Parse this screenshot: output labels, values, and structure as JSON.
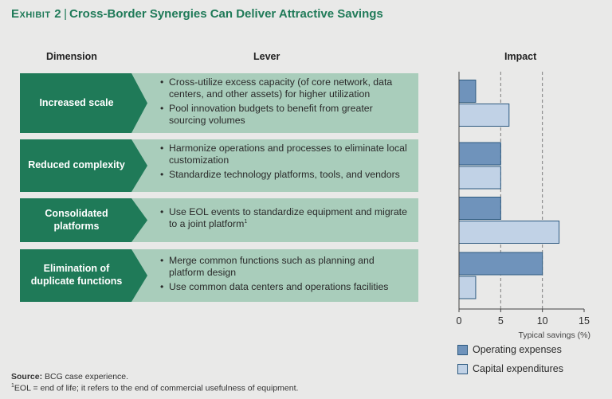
{
  "exhibit": {
    "label": "Exhibit 2",
    "separator": "|",
    "title": "Cross-Border Synergies Can Deliver Attractive Savings"
  },
  "headers": {
    "dimension": "Dimension",
    "lever": "Lever",
    "impact": "Impact"
  },
  "rows": [
    {
      "dimension": "Increased scale",
      "levers": [
        "Cross-utilize excess capacity (of core network, data centers, and other assets) for higher utilization",
        "Pool innovation budgets to benefit from greater sourcing volumes"
      ]
    },
    {
      "dimension": "Reduced complexity",
      "levers": [
        "Harmonize operations and processes to eliminate local customization",
        "Standardize technology platforms, tools, and vendors"
      ]
    },
    {
      "dimension": "Consolidated platforms",
      "levers": [
        "Use EOL events to standardize equipment and migrate to a joint platform"
      ],
      "lever_sup": "1"
    },
    {
      "dimension": "Elimination of duplicate functions",
      "levers": [
        "Merge common functions such as planning and platform design",
        "Use common data centers and operations facilities"
      ]
    }
  ],
  "chart_data": {
    "type": "bar",
    "orientation": "horizontal",
    "categories": [
      "Increased scale",
      "Reduced complexity",
      "Consolidated platforms",
      "Elimination of duplicate functions"
    ],
    "series": [
      {
        "name": "Operating expenses",
        "values": [
          2,
          5,
          5,
          10
        ],
        "color": "#6f93bb"
      },
      {
        "name": "Capital expenditures",
        "values": [
          6,
          5,
          12,
          2
        ],
        "color": "#c1d2e6"
      }
    ],
    "xlabel": "Typical savings (%)",
    "xlim": [
      0,
      15
    ],
    "xticks": [
      "0",
      "5",
      "10",
      "15"
    ],
    "gridlines": [
      5,
      10
    ],
    "title": "Impact"
  },
  "footnotes": {
    "source_label": "Source:",
    "source_text": "BCG case experience.",
    "note_mark": "1",
    "note_text": "EOL = end of life; it refers to the end of commercial usefulness of equipment."
  }
}
